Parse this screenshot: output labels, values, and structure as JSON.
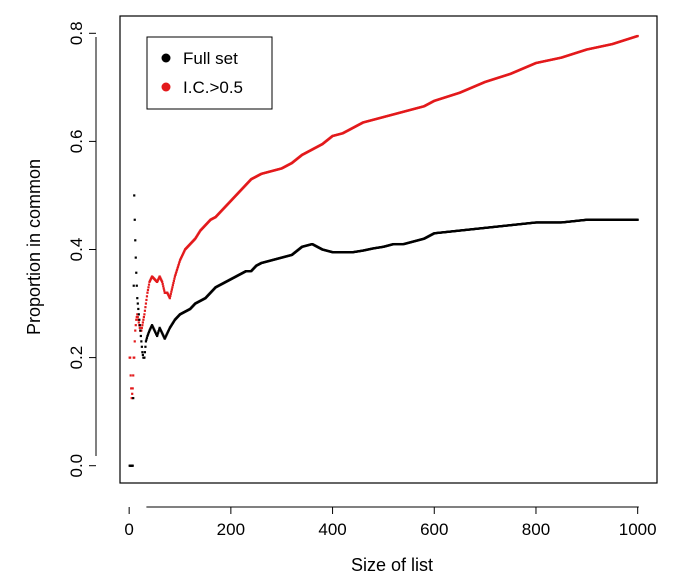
{
  "chart_data": {
    "type": "scatter",
    "title": "",
    "xlabel": "Size of list",
    "ylabel": "Proportion in common",
    "xlim": [
      -18,
      1038
    ],
    "ylim": [
      -0.032,
      0.832
    ],
    "x_ticks": [
      0,
      200,
      400,
      600,
      800,
      1000
    ],
    "x_tick_labels": [
      "0",
      "200",
      "400",
      "600",
      "800",
      "1000"
    ],
    "y_ticks": [
      0.0,
      0.2,
      0.4,
      0.6,
      0.8
    ],
    "y_tick_labels": [
      "0.0",
      "0.2",
      "0.4",
      "0.6",
      "0.8"
    ],
    "grid": false,
    "legend_position": "top-left",
    "x_range": [
      1,
      1000
    ],
    "series": [
      {
        "name": "Full set",
        "color": "#000000",
        "curve_x": [
          1,
          2,
          3,
          4,
          5,
          6,
          7,
          8,
          9,
          10,
          11,
          12,
          13,
          14,
          15,
          16,
          18,
          20,
          22,
          24,
          26,
          28,
          30,
          33,
          36,
          40,
          45,
          50,
          55,
          60,
          65,
          70,
          75,
          80,
          90,
          100,
          110,
          120,
          130,
          140,
          150,
          160,
          170,
          180,
          190,
          200,
          210,
          220,
          230,
          240,
          250,
          260,
          280,
          300,
          320,
          340,
          360,
          380,
          400,
          420,
          440,
          460,
          480,
          500,
          520,
          540,
          560,
          580,
          600,
          650,
          700,
          750,
          800,
          850,
          900,
          950,
          1000
        ],
        "curve_y": [
          0.0,
          0.0,
          0.0,
          0.0,
          0.0,
          0.0,
          0.0,
          0.125,
          0.333,
          0.5,
          0.455,
          0.417,
          0.385,
          0.357,
          0.333,
          0.31,
          0.29,
          0.27,
          0.25,
          0.23,
          0.21,
          0.2,
          0.2,
          0.23,
          0.24,
          0.25,
          0.26,
          0.25,
          0.24,
          0.255,
          0.245,
          0.235,
          0.245,
          0.255,
          0.27,
          0.28,
          0.285,
          0.29,
          0.3,
          0.305,
          0.31,
          0.32,
          0.33,
          0.335,
          0.34,
          0.345,
          0.35,
          0.355,
          0.36,
          0.36,
          0.37,
          0.375,
          0.38,
          0.385,
          0.39,
          0.405,
          0.41,
          0.4,
          0.395,
          0.395,
          0.395,
          0.398,
          0.402,
          0.405,
          0.41,
          0.41,
          0.415,
          0.42,
          0.43,
          0.435,
          0.44,
          0.445,
          0.45,
          0.45,
          0.455,
          0.455,
          0.455
        ]
      },
      {
        "name": "I.C.>0.5",
        "color": "#e31a1c",
        "curve_x": [
          1,
          2,
          3,
          4,
          5,
          6,
          7,
          8,
          9,
          10,
          11,
          12,
          14,
          16,
          18,
          20,
          22,
          24,
          26,
          28,
          30,
          33,
          36,
          40,
          45,
          50,
          55,
          60,
          65,
          70,
          75,
          80,
          90,
          100,
          110,
          120,
          130,
          140,
          150,
          160,
          170,
          180,
          190,
          200,
          210,
          220,
          230,
          240,
          250,
          260,
          280,
          300,
          320,
          340,
          360,
          380,
          400,
          420,
          440,
          460,
          480,
          500,
          520,
          540,
          560,
          580,
          600,
          650,
          700,
          750,
          800,
          850,
          900,
          950,
          1000
        ],
        "curve_y": [
          0.2,
          0.2,
          0.167,
          0.143,
          0.125,
          0.133,
          0.143,
          0.167,
          0.2,
          0.2,
          0.23,
          0.25,
          0.27,
          0.28,
          0.27,
          0.26,
          0.25,
          0.25,
          0.26,
          0.27,
          0.28,
          0.3,
          0.32,
          0.34,
          0.35,
          0.345,
          0.34,
          0.35,
          0.34,
          0.32,
          0.32,
          0.31,
          0.35,
          0.38,
          0.4,
          0.41,
          0.42,
          0.435,
          0.445,
          0.455,
          0.46,
          0.47,
          0.48,
          0.49,
          0.5,
          0.51,
          0.52,
          0.53,
          0.535,
          0.54,
          0.545,
          0.55,
          0.56,
          0.575,
          0.585,
          0.595,
          0.61,
          0.615,
          0.625,
          0.635,
          0.64,
          0.645,
          0.65,
          0.655,
          0.66,
          0.665,
          0.675,
          0.69,
          0.71,
          0.725,
          0.745,
          0.755,
          0.77,
          0.78,
          0.795
        ]
      }
    ]
  }
}
